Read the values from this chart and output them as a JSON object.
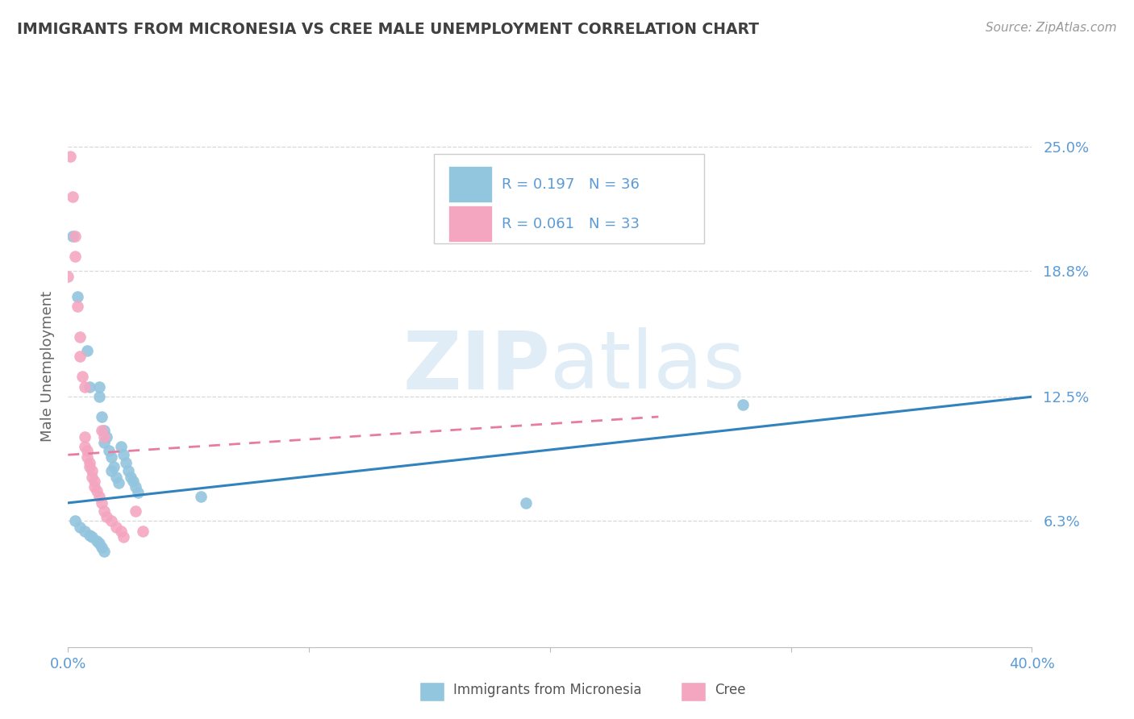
{
  "title": "IMMIGRANTS FROM MICRONESIA VS CREE MALE UNEMPLOYMENT CORRELATION CHART",
  "source": "Source: ZipAtlas.com",
  "ylabel": "Male Unemployment",
  "ytick_labels": [
    "25.0%",
    "18.8%",
    "12.5%",
    "6.3%"
  ],
  "ytick_values": [
    0.25,
    0.188,
    0.125,
    0.063
  ],
  "xlim": [
    0.0,
    0.4
  ],
  "ylim": [
    0.0,
    0.28
  ],
  "blue_color": "#92c5de",
  "pink_color": "#f4a6c0",
  "blue_line_color": "#3182bd",
  "pink_line_color": "#e87ca0",
  "watermark_zip": "ZIP",
  "watermark_atlas": "atlas",
  "micronesia_points": [
    [
      0.002,
      0.205
    ],
    [
      0.004,
      0.175
    ],
    [
      0.008,
      0.148
    ],
    [
      0.009,
      0.13
    ],
    [
      0.013,
      0.13
    ],
    [
      0.013,
      0.125
    ],
    [
      0.014,
      0.115
    ],
    [
      0.015,
      0.108
    ],
    [
      0.015,
      0.102
    ],
    [
      0.016,
      0.105
    ],
    [
      0.017,
      0.098
    ],
    [
      0.018,
      0.095
    ],
    [
      0.018,
      0.088
    ],
    [
      0.019,
      0.09
    ],
    [
      0.02,
      0.085
    ],
    [
      0.021,
      0.082
    ],
    [
      0.022,
      0.1
    ],
    [
      0.023,
      0.096
    ],
    [
      0.024,
      0.092
    ],
    [
      0.025,
      0.088
    ],
    [
      0.026,
      0.085
    ],
    [
      0.027,
      0.083
    ],
    [
      0.028,
      0.08
    ],
    [
      0.029,
      0.077
    ],
    [
      0.003,
      0.063
    ],
    [
      0.005,
      0.06
    ],
    [
      0.007,
      0.058
    ],
    [
      0.009,
      0.056
    ],
    [
      0.01,
      0.055
    ],
    [
      0.012,
      0.053
    ],
    [
      0.013,
      0.052
    ],
    [
      0.014,
      0.05
    ],
    [
      0.015,
      0.048
    ],
    [
      0.055,
      0.075
    ],
    [
      0.19,
      0.072
    ],
    [
      0.28,
      0.121
    ]
  ],
  "cree_points": [
    [
      0.001,
      0.245
    ],
    [
      0.002,
      0.225
    ],
    [
      0.003,
      0.205
    ],
    [
      0.003,
      0.195
    ],
    [
      0.004,
      0.17
    ],
    [
      0.005,
      0.155
    ],
    [
      0.005,
      0.145
    ],
    [
      0.0,
      0.185
    ],
    [
      0.006,
      0.135
    ],
    [
      0.007,
      0.13
    ],
    [
      0.007,
      0.105
    ],
    [
      0.007,
      0.1
    ],
    [
      0.008,
      0.098
    ],
    [
      0.008,
      0.095
    ],
    [
      0.009,
      0.092
    ],
    [
      0.009,
      0.09
    ],
    [
      0.01,
      0.088
    ],
    [
      0.01,
      0.085
    ],
    [
      0.011,
      0.083
    ],
    [
      0.011,
      0.08
    ],
    [
      0.012,
      0.078
    ],
    [
      0.013,
      0.075
    ],
    [
      0.014,
      0.072
    ],
    [
      0.015,
      0.068
    ],
    [
      0.016,
      0.065
    ],
    [
      0.018,
      0.063
    ],
    [
      0.02,
      0.06
    ],
    [
      0.022,
      0.058
    ],
    [
      0.023,
      0.055
    ],
    [
      0.014,
      0.108
    ],
    [
      0.015,
      0.105
    ],
    [
      0.028,
      0.068
    ],
    [
      0.031,
      0.058
    ]
  ],
  "blue_trend_x0": 0.0,
  "blue_trend_x1": 0.4,
  "blue_trend_y0": 0.072,
  "blue_trend_y1": 0.125,
  "pink_trend_x0": 0.0,
  "pink_trend_x1": 0.245,
  "pink_trend_y0": 0.096,
  "pink_trend_y1": 0.115,
  "background_color": "#ffffff",
  "grid_color": "#d8d8d8",
  "title_color": "#404040",
  "source_color": "#999999",
  "tick_color": "#5b9bd5",
  "ylabel_color": "#666666",
  "legend_r_color": "#5b9bd5",
  "legend_n_color": "#5b9bd5",
  "legend_blue_r": "R = 0.197",
  "legend_blue_n": "N = 36",
  "legend_pink_r": "R = 0.061",
  "legend_pink_n": "N = 33"
}
